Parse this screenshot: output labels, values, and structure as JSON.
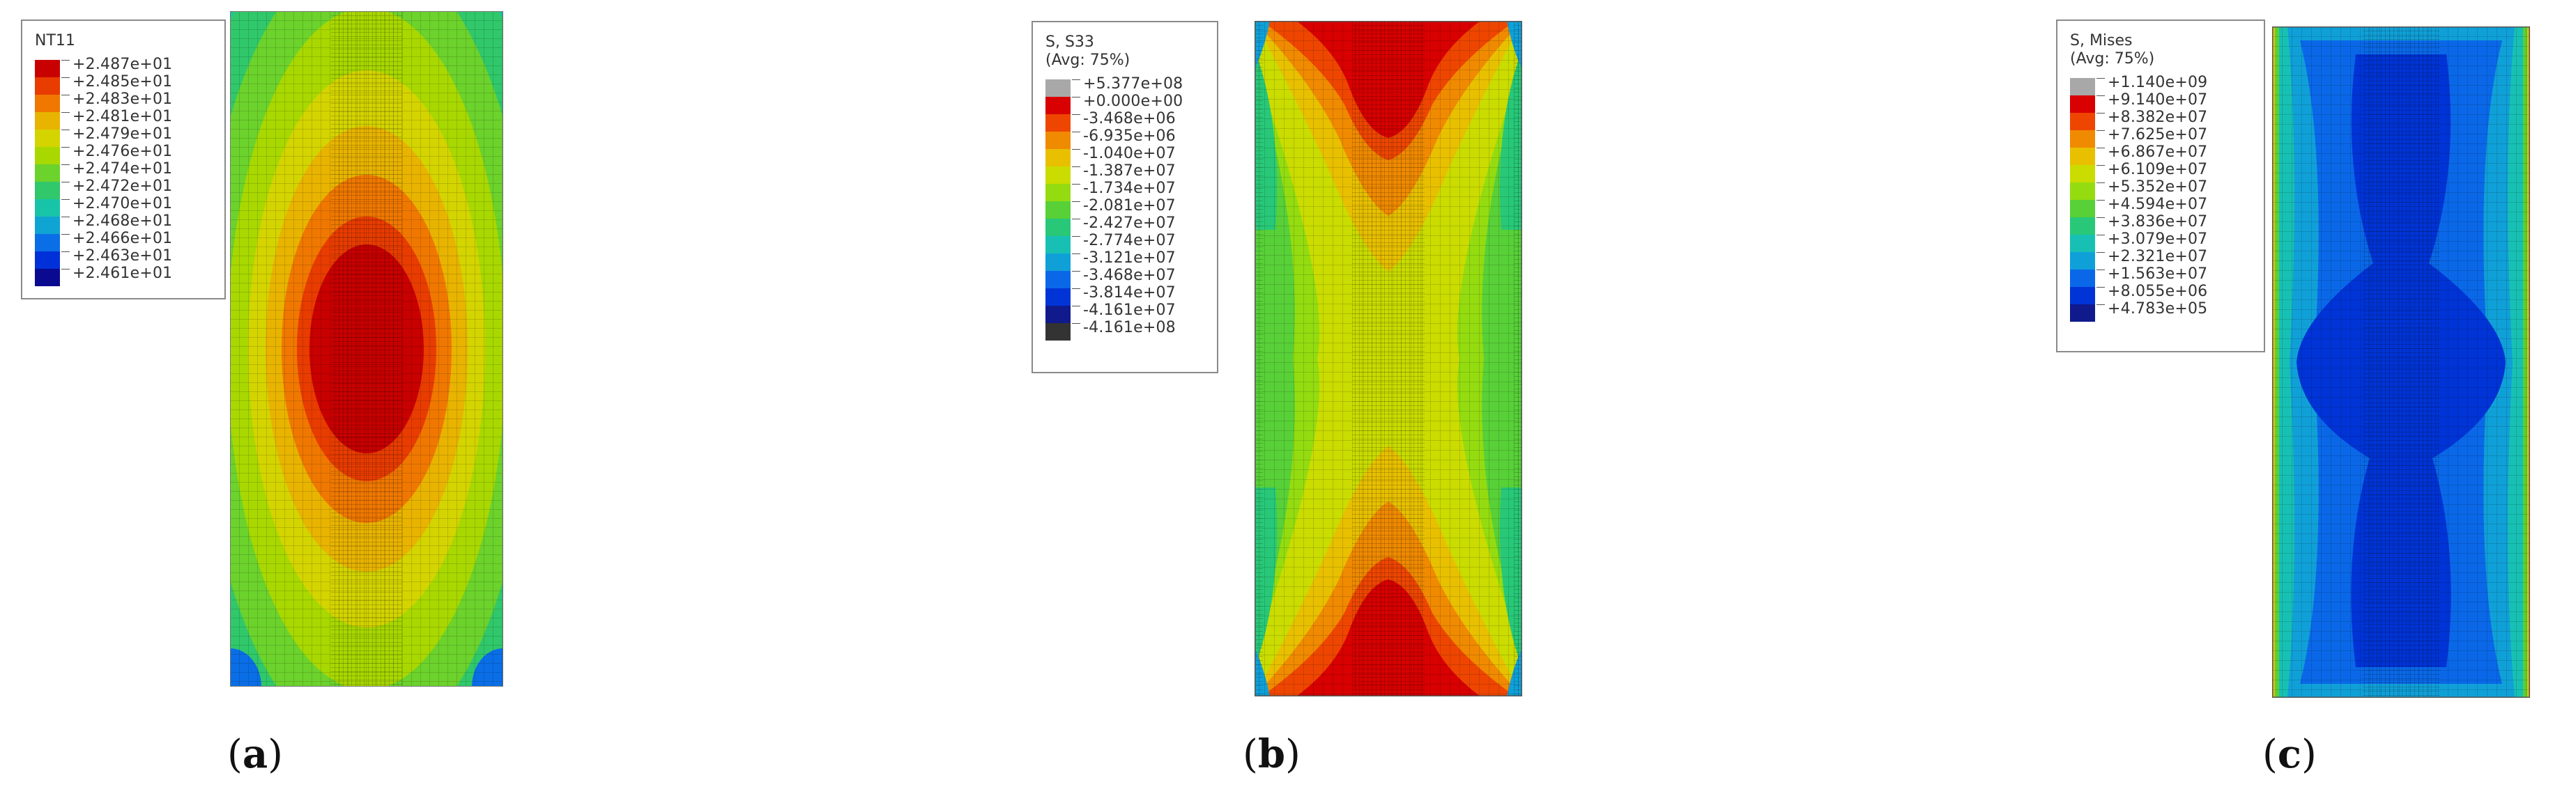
{
  "panels": [
    {
      "id": "a",
      "caption_letter": "a",
      "legend": {
        "title_lines": [
          "NT11"
        ],
        "values": [
          "+2.487e+01",
          "+2.485e+01",
          "+2.483e+01",
          "+2.481e+01",
          "+2.479e+01",
          "+2.476e+01",
          "+2.474e+01",
          "+2.472e+01",
          "+2.470e+01",
          "+2.468e+01",
          "+2.466e+01",
          "+2.463e+01",
          "+2.461e+01"
        ],
        "colors": [
          "#c80000",
          "#e83c00",
          "#f07800",
          "#e8b400",
          "#d4d400",
          "#a8d800",
          "#6cd22c",
          "#30c86a",
          "#18c4a8",
          "#10a4d2",
          "#0a6ee6",
          "#0030d8",
          "#0a0a90"
        ]
      }
    },
    {
      "id": "b",
      "caption_letter": "b",
      "legend": {
        "title_lines": [
          "S, S33",
          "(Avg: 75%)"
        ],
        "values": [
          "+5.377e+08",
          "+0.000e+00",
          "-3.468e+06",
          "-6.935e+06",
          "-1.040e+07",
          "-1.387e+07",
          "-1.734e+07",
          "-2.081e+07",
          "-2.427e+07",
          "-2.774e+07",
          "-3.121e+07",
          "-3.468e+07",
          "-3.814e+07",
          "-4.161e+07",
          "-4.161e+08"
        ],
        "colors": [
          "#a8a8a8",
          "#d80000",
          "#ee4600",
          "#f08a00",
          "#e8c000",
          "#cadc00",
          "#94dc10",
          "#58d038",
          "#28c878",
          "#18c0b4",
          "#10a0d8",
          "#0a68e8",
          "#0034d6",
          "#101a8c",
          "#333333"
        ]
      }
    },
    {
      "id": "c",
      "caption_letter": "c",
      "legend": {
        "title_lines": [
          "S, Mises",
          "(Avg: 75%)"
        ],
        "values": [
          "+1.140e+09",
          "+9.140e+07",
          "+8.382e+07",
          "+7.625e+07",
          "+6.867e+07",
          "+6.109e+07",
          "+5.352e+07",
          "+4.594e+07",
          "+3.836e+07",
          "+3.079e+07",
          "+2.321e+07",
          "+1.563e+07",
          "+8.055e+06",
          "+4.783e+05"
        ],
        "colors": [
          "#a8a8a8",
          "#d80000",
          "#ee4600",
          "#f08a00",
          "#e8c000",
          "#cadc00",
          "#94dc10",
          "#58d038",
          "#28c878",
          "#18c0b4",
          "#10a0d8",
          "#0a68e8",
          "#0034d6",
          "#101a8c"
        ]
      }
    }
  ]
}
